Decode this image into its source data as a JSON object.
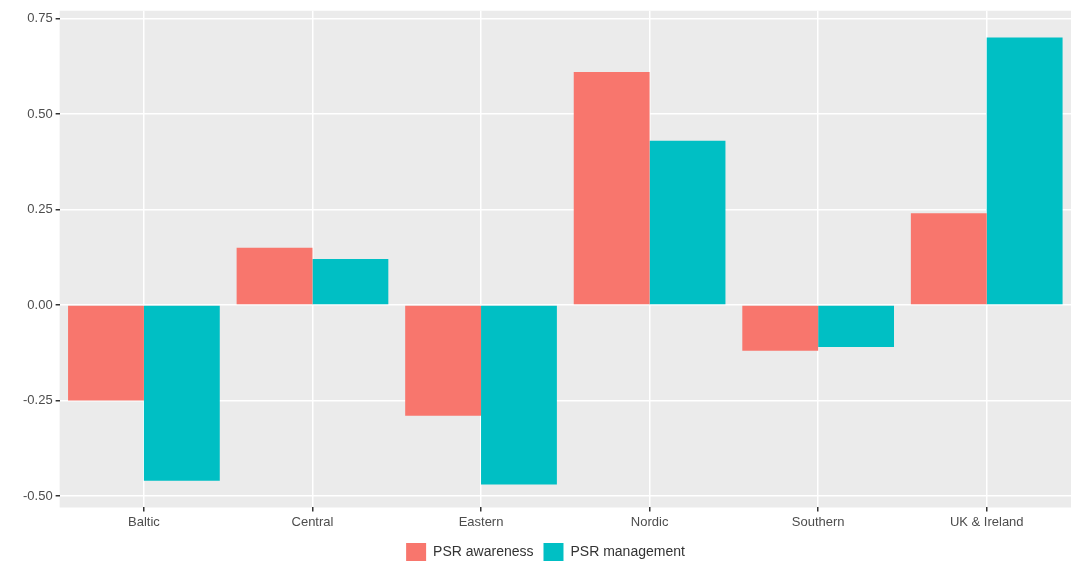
{
  "chart_data": {
    "type": "bar",
    "categories": [
      "Baltic",
      "Central",
      "Eastern",
      "Nordic",
      "Southern",
      "UK & Ireland"
    ],
    "series": [
      {
        "name": "PSR awareness",
        "color": "#f8766d",
        "values": [
          -0.25,
          0.15,
          -0.29,
          0.61,
          -0.12,
          0.24
        ]
      },
      {
        "name": "PSR management",
        "color": "#00bfc4",
        "values": [
          -0.46,
          0.12,
          -0.47,
          0.43,
          -0.11,
          0.7
        ]
      }
    ],
    "ylim": [
      -0.53,
      0.77
    ],
    "yticks": [
      {
        "value": -0.5,
        "label": "-0.50"
      },
      {
        "value": -0.25,
        "label": "-0.25"
      },
      {
        "value": 0,
        "label": "0.00"
      },
      {
        "value": 0.25,
        "label": "0.25"
      },
      {
        "value": 0.5,
        "label": "0.50"
      },
      {
        "value": 0.75,
        "label": "0.75"
      }
    ],
    "grid": true,
    "legend": "bottom"
  }
}
